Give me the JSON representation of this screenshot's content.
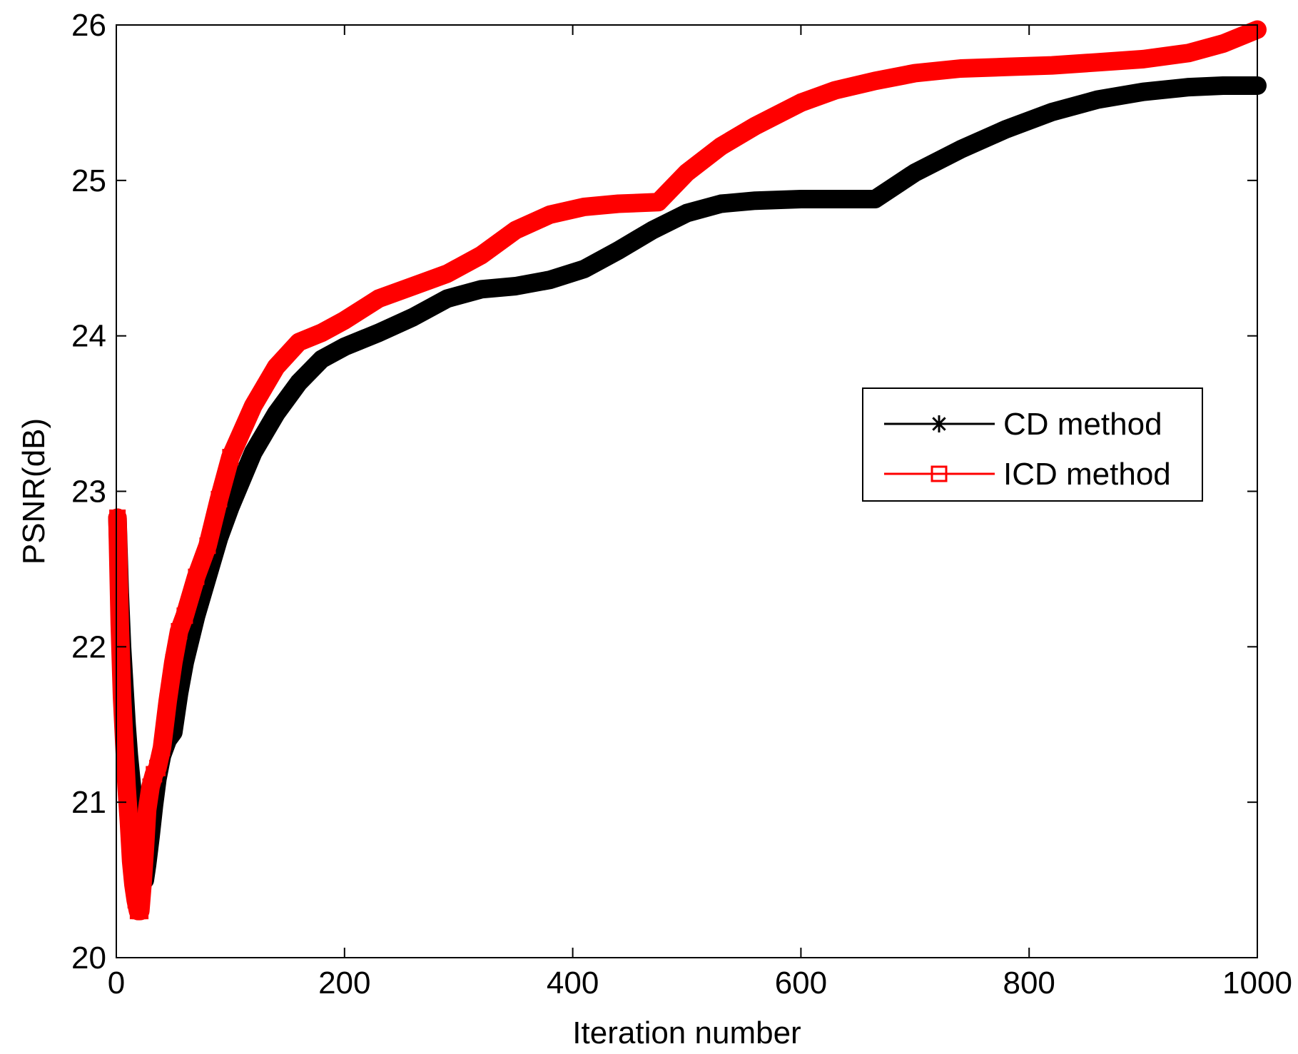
{
  "chart_data": {
    "type": "line",
    "title": "",
    "xlabel": "Iteration number",
    "ylabel": "PSNR(dB)",
    "xlim": [
      0,
      1000
    ],
    "ylim": [
      20,
      26
    ],
    "xticks": [
      0,
      200,
      400,
      600,
      800,
      1000
    ],
    "yticks": [
      20,
      21,
      22,
      23,
      24,
      25,
      26
    ],
    "xtick_labels": [
      "0",
      "200",
      "400",
      "600",
      "800",
      "1000"
    ],
    "ytick_labels": [
      "20",
      "21",
      "22",
      "23",
      "24",
      "25",
      "26"
    ],
    "grid": false,
    "legend_position": "center-right",
    "series": [
      {
        "name": "CD method",
        "color": "#000000",
        "marker": "asterisk",
        "x": [
          1,
          3,
          5,
          7,
          9,
          11,
          13,
          15,
          17,
          19,
          21,
          23,
          25,
          27,
          30,
          33,
          36,
          40,
          45,
          50,
          55,
          60,
          70,
          80,
          90,
          100,
          120,
          140,
          160,
          180,
          200,
          230,
          260,
          290,
          320,
          350,
          380,
          410,
          440,
          470,
          500,
          530,
          560,
          600,
          630,
          665,
          700,
          740,
          780,
          820,
          860,
          900,
          940,
          970,
          1000
        ],
        "y": [
          22.83,
          22.35,
          22.0,
          21.75,
          21.5,
          21.3,
          21.15,
          21.0,
          20.85,
          20.72,
          20.62,
          20.55,
          20.5,
          20.6,
          20.78,
          20.98,
          21.15,
          21.3,
          21.4,
          21.45,
          21.7,
          21.9,
          22.2,
          22.45,
          22.7,
          22.9,
          23.25,
          23.5,
          23.7,
          23.85,
          23.93,
          24.02,
          24.12,
          24.24,
          24.3,
          24.32,
          24.36,
          24.43,
          24.55,
          24.68,
          24.79,
          24.85,
          24.87,
          24.88,
          24.88,
          24.88,
          25.05,
          25.2,
          25.33,
          25.44,
          25.52,
          25.57,
          25.6,
          25.61,
          25.61
        ]
      },
      {
        "name": "ICD method",
        "color": "#ff0000",
        "marker": "square",
        "x": [
          1,
          3,
          5,
          7,
          9,
          11,
          13,
          15,
          17,
          19,
          21,
          23,
          25,
          27,
          30,
          33,
          36,
          40,
          45,
          50,
          55,
          60,
          70,
          80,
          90,
          100,
          120,
          140,
          160,
          180,
          200,
          230,
          260,
          290,
          320,
          350,
          380,
          410,
          440,
          475,
          500,
          530,
          560,
          600,
          630,
          665,
          700,
          740,
          780,
          820,
          860,
          900,
          940,
          970,
          1000
        ],
        "y": [
          22.83,
          22.15,
          21.68,
          21.38,
          21.1,
          20.88,
          20.62,
          20.47,
          20.37,
          20.3,
          20.3,
          20.48,
          20.7,
          20.95,
          21.1,
          21.18,
          21.22,
          21.35,
          21.65,
          21.9,
          22.1,
          22.2,
          22.45,
          22.65,
          22.95,
          23.22,
          23.55,
          23.8,
          23.96,
          24.02,
          24.1,
          24.24,
          24.32,
          24.4,
          24.52,
          24.68,
          24.78,
          24.83,
          24.85,
          24.86,
          25.05,
          25.22,
          25.35,
          25.5,
          25.58,
          25.64,
          25.69,
          25.72,
          25.73,
          25.74,
          25.76,
          25.78,
          25.82,
          25.88,
          25.97
        ]
      }
    ]
  }
}
